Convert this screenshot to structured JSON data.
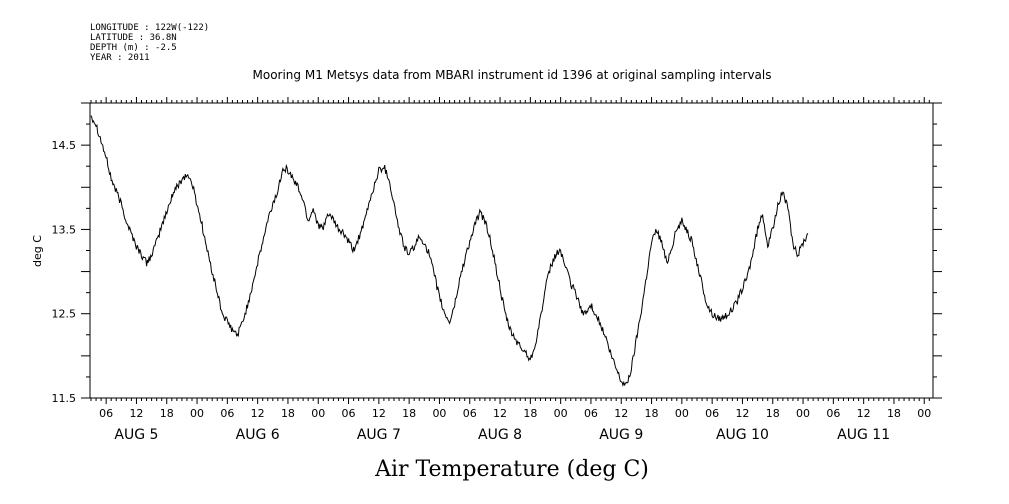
{
  "meta": {
    "longitude": "LONGITUDE : 122W(-122)",
    "latitude": "LATITUDE : 36.8N",
    "depth": "DEPTH (m) : -2.5",
    "year": "YEAR : 2011"
  },
  "chart_data": {
    "type": "line",
    "title": "Mooring M1 Metsys data from MBARI instrument id 1396 at original sampling intervals",
    "xlabel": "Air Temperature (deg C)",
    "ylabel": "deg C",
    "ylim": [
      11.5,
      15.0
    ],
    "y_major_ticks": [
      11.5,
      12.5,
      13.5,
      14.5
    ],
    "y_tick_labels": [
      "11.5",
      "12.5",
      "13.5",
      "14.5"
    ],
    "xlim_hours": [
      0,
      162
    ],
    "x_hour_ticks": [
      {
        "h": 3,
        "label": "06"
      },
      {
        "h": 9,
        "label": "12"
      },
      {
        "h": 15,
        "label": "18"
      },
      {
        "h": 21,
        "label": "00"
      },
      {
        "h": 27,
        "label": "06"
      },
      {
        "h": 33,
        "label": "12"
      },
      {
        "h": 39,
        "label": "18"
      },
      {
        "h": 45,
        "label": "00"
      },
      {
        "h": 51,
        "label": "06"
      },
      {
        "h": 57,
        "label": "12"
      },
      {
        "h": 63,
        "label": "18"
      },
      {
        "h": 69,
        "label": "00"
      },
      {
        "h": 75,
        "label": "06"
      },
      {
        "h": 81,
        "label": "12"
      },
      {
        "h": 87,
        "label": "18"
      },
      {
        "h": 93,
        "label": "00"
      },
      {
        "h": 99,
        "label": "06"
      },
      {
        "h": 105,
        "label": "12"
      },
      {
        "h": 111,
        "label": "18"
      },
      {
        "h": 117,
        "label": "00"
      },
      {
        "h": 123,
        "label": "06"
      },
      {
        "h": 129,
        "label": "12"
      },
      {
        "h": 135,
        "label": "18"
      },
      {
        "h": 141,
        "label": "00"
      },
      {
        "h": 147,
        "label": "06"
      },
      {
        "h": 153,
        "label": "12"
      },
      {
        "h": 159,
        "label": "18"
      },
      {
        "h": 165,
        "label": "00"
      }
    ],
    "x_day_labels": [
      {
        "h": 9,
        "label": "AUG  5"
      },
      {
        "h": 33,
        "label": "AUG  6"
      },
      {
        "h": 57,
        "label": "AUG  7"
      },
      {
        "h": 81,
        "label": "AUG  8"
      },
      {
        "h": 105,
        "label": "AUG  9"
      },
      {
        "h": 129,
        "label": "AUG 10"
      },
      {
        "h": 153,
        "label": "AUG 11"
      }
    ],
    "series": [
      {
        "color": "#000000",
        "points": [
          [
            0.0,
            14.85
          ],
          [
            1.0,
            14.75
          ],
          [
            2.0,
            14.55
          ],
          [
            3.0,
            14.35
          ],
          [
            4.0,
            14.1
          ],
          [
            5.0,
            13.95
          ],
          [
            6.0,
            13.8
          ],
          [
            7.0,
            13.6
          ],
          [
            8.0,
            13.45
          ],
          [
            9.0,
            13.3
          ],
          [
            10.0,
            13.2
          ],
          [
            11.0,
            13.1
          ],
          [
            12.0,
            13.2
          ],
          [
            13.0,
            13.35
          ],
          [
            14.0,
            13.55
          ],
          [
            15.0,
            13.7
          ],
          [
            16.0,
            13.9
          ],
          [
            17.0,
            14.0
          ],
          [
            18.0,
            14.1
          ],
          [
            19.0,
            14.15
          ],
          [
            20.0,
            14.05
          ],
          [
            21.0,
            13.8
          ],
          [
            22.0,
            13.55
          ],
          [
            23.0,
            13.25
          ],
          [
            24.0,
            13.0
          ],
          [
            25.0,
            12.75
          ],
          [
            26.0,
            12.5
          ],
          [
            27.0,
            12.4
          ],
          [
            28.0,
            12.3
          ],
          [
            29.0,
            12.25
          ],
          [
            30.0,
            12.4
          ],
          [
            31.0,
            12.6
          ],
          [
            32.0,
            12.85
          ],
          [
            33.0,
            13.1
          ],
          [
            34.0,
            13.35
          ],
          [
            35.0,
            13.6
          ],
          [
            36.0,
            13.8
          ],
          [
            37.0,
            13.95
          ],
          [
            38.0,
            14.25
          ],
          [
            39.0,
            14.2
          ],
          [
            40.0,
            14.1
          ],
          [
            41.0,
            14.0
          ],
          [
            42.0,
            13.85
          ],
          [
            43.0,
            13.6
          ],
          [
            44.0,
            13.75
          ],
          [
            45.0,
            13.55
          ],
          [
            46.0,
            13.5
          ],
          [
            47.0,
            13.7
          ],
          [
            48.0,
            13.6
          ],
          [
            49.0,
            13.5
          ],
          [
            50.0,
            13.45
          ],
          [
            51.0,
            13.35
          ],
          [
            52.0,
            13.25
          ],
          [
            53.0,
            13.4
          ],
          [
            54.0,
            13.55
          ],
          [
            55.0,
            13.8
          ],
          [
            56.0,
            14.0
          ],
          [
            57.0,
            14.2
          ],
          [
            58.0,
            14.25
          ],
          [
            59.0,
            14.1
          ],
          [
            60.0,
            13.8
          ],
          [
            61.0,
            13.5
          ],
          [
            62.0,
            13.3
          ],
          [
            63.0,
            13.2
          ],
          [
            64.0,
            13.3
          ],
          [
            65.0,
            13.4
          ],
          [
            66.0,
            13.35
          ],
          [
            67.0,
            13.2
          ],
          [
            68.0,
            12.95
          ],
          [
            69.0,
            12.7
          ],
          [
            70.0,
            12.5
          ],
          [
            71.0,
            12.4
          ],
          [
            72.0,
            12.6
          ],
          [
            73.0,
            12.9
          ],
          [
            74.0,
            13.15
          ],
          [
            75.0,
            13.35
          ],
          [
            76.0,
            13.55
          ],
          [
            77.0,
            13.7
          ],
          [
            78.0,
            13.6
          ],
          [
            79.0,
            13.4
          ],
          [
            80.0,
            13.1
          ],
          [
            81.0,
            12.8
          ],
          [
            82.0,
            12.5
          ],
          [
            83.0,
            12.3
          ],
          [
            84.0,
            12.2
          ],
          [
            85.0,
            12.1
          ],
          [
            86.0,
            12.05
          ],
          [
            87.0,
            11.95
          ],
          [
            88.0,
            12.15
          ],
          [
            89.0,
            12.45
          ],
          [
            90.0,
            12.8
          ],
          [
            91.0,
            13.05
          ],
          [
            92.0,
            13.2
          ],
          [
            93.0,
            13.25
          ],
          [
            94.0,
            13.05
          ],
          [
            95.0,
            12.85
          ],
          [
            96.0,
            12.75
          ],
          [
            97.0,
            12.55
          ],
          [
            98.0,
            12.5
          ],
          [
            99.0,
            12.6
          ],
          [
            100.0,
            12.5
          ],
          [
            101.0,
            12.35
          ],
          [
            102.0,
            12.2
          ],
          [
            103.0,
            12.0
          ],
          [
            104.0,
            11.85
          ],
          [
            105.0,
            11.7
          ],
          [
            106.0,
            11.65
          ],
          [
            107.0,
            11.85
          ],
          [
            108.0,
            12.2
          ],
          [
            109.0,
            12.55
          ],
          [
            110.0,
            12.95
          ],
          [
            111.0,
            13.35
          ],
          [
            112.0,
            13.5
          ],
          [
            113.0,
            13.35
          ],
          [
            114.0,
            13.1
          ],
          [
            115.0,
            13.3
          ],
          [
            116.0,
            13.5
          ],
          [
            117.0,
            13.6
          ],
          [
            118.0,
            13.5
          ],
          [
            119.0,
            13.35
          ],
          [
            120.0,
            13.1
          ],
          [
            121.0,
            12.85
          ],
          [
            122.0,
            12.6
          ],
          [
            123.0,
            12.5
          ],
          [
            124.0,
            12.45
          ],
          [
            125.0,
            12.45
          ],
          [
            126.0,
            12.5
          ],
          [
            127.0,
            12.55
          ],
          [
            128.0,
            12.65
          ],
          [
            129.0,
            12.8
          ],
          [
            130.0,
            12.95
          ],
          [
            131.0,
            13.2
          ],
          [
            132.0,
            13.5
          ],
          [
            133.0,
            13.7
          ],
          [
            134.0,
            13.3
          ],
          [
            135.0,
            13.5
          ],
          [
            136.0,
            13.8
          ],
          [
            137.0,
            13.95
          ],
          [
            138.0,
            13.75
          ],
          [
            139.0,
            13.3
          ],
          [
            140.0,
            13.2
          ],
          [
            141.0,
            13.35
          ],
          [
            142.0,
            13.45
          ]
        ]
      }
    ]
  }
}
